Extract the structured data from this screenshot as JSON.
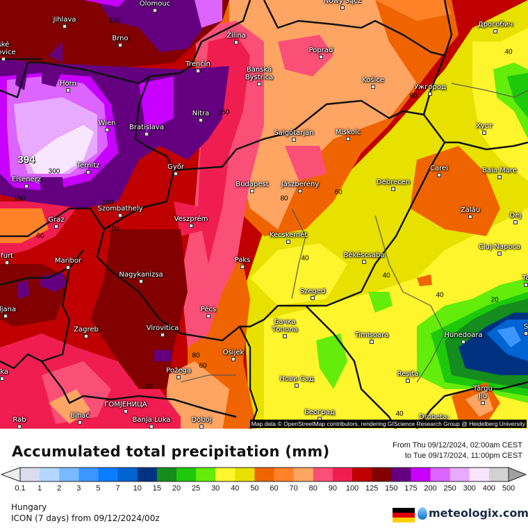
{
  "map": {
    "max_value_label": "394",
    "attribution": "Map data © OpenStreetMap contributors, rendering GIScience Research Group @ Heidelberg University",
    "cities": [
      "Olomouc",
      "Jihlava",
      "Brno",
      "ské\nějovice",
      "Horn",
      "Wien",
      "Bratislava",
      "Ternitz",
      "Eisenerz",
      "Győr",
      "Szombathely",
      "Trenčín",
      "Nitra",
      "Žilina",
      "Banská\nBystrica",
      "Budapest",
      "Poprad",
      "Nowy Sącz",
      "Košice",
      "Ужгород",
      "Дрогобич",
      "Хуст",
      "Salgótarján",
      "Miskolc",
      "Jászberény",
      "Debrecen",
      "Carei",
      "Baia Mare",
      "Zalău",
      "Dej",
      "Cluj-Napoca",
      "Graz",
      "furt",
      "Maribor",
      "Veszprém",
      "Nagykanizsa",
      "Paks",
      "Pécs",
      "oljana",
      "Zagreb",
      "Virovitica",
      "Osijek",
      "Požega",
      "eka",
      "Bihać",
      "ГОМЈЕНИЦА",
      "Banja Luka",
      "Doboj",
      "Rab",
      "Kecskemét",
      "Békéscsaba",
      "Szeged",
      "Бачка\nТопола",
      "Timișoara",
      "Нови Сад",
      "Hunedoara",
      "Reșița",
      "Târgu\nJiu",
      "Београд",
      "Drobeta-",
      "S",
      "Tâ"
    ],
    "contour_labels": [
      "150",
      "150",
      "300",
      "150",
      "100",
      "100",
      "60",
      "80",
      "60",
      "60",
      "40",
      "40",
      "40",
      "40",
      "20",
      "80",
      "60",
      "80",
      "40"
    ]
  },
  "legend": {
    "title": "Accumulated total precipitation (mm)",
    "period_from": "From Thu 09/12/2024, 02:00am CEST",
    "period_to": "to Tue 09/17/2024, 11:00pm CEST",
    "ticks": [
      "0.1",
      "1",
      "2",
      "3",
      "5",
      "7",
      "10",
      "15",
      "20",
      "25",
      "30",
      "40",
      "50",
      "60",
      "70",
      "80",
      "90",
      "100",
      "125",
      "150",
      "175",
      "200",
      "250",
      "300",
      "400",
      "500"
    ],
    "colors": [
      "#dcdcf0",
      "#b4d7ff",
      "#78b9ff",
      "#3c96ff",
      "#0a7dff",
      "#0064d2",
      "#003282",
      "#148c1e",
      "#1ec80a",
      "#64ec0a",
      "#fff52d",
      "#e8e100",
      "#f06400",
      "#ff8228",
      "#ffa564",
      "#fa5078",
      "#f01e50",
      "#c00000",
      "#820000",
      "#640080",
      "#c800ff",
      "#dc64ff",
      "#e8aaff",
      "#f8e6ff",
      "#d2d2d2"
    ],
    "under_color": "#eeeeee",
    "over_color": "#a0a0a0"
  },
  "footer": {
    "region": "Hungary",
    "model": "ICON (7 days)  from  09/12/2024/00z",
    "brand": "meteologix.com",
    "flag_colors": [
      "#000000",
      "#dd0000",
      "#ffce00"
    ]
  }
}
